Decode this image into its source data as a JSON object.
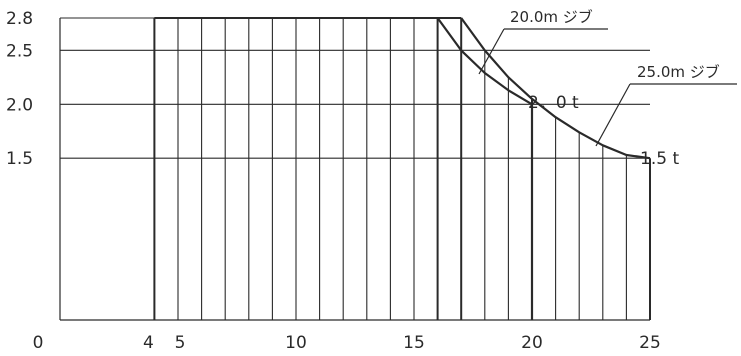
{
  "chart_data": {
    "type": "line",
    "title": "",
    "xlabel": "",
    "ylabel": "",
    "xlim": [
      0,
      25
    ],
    "ylim": [
      0,
      2.8
    ],
    "x_ticks": [
      "0",
      "4",
      "5",
      "10",
      "15",
      "20",
      "25"
    ],
    "y_ticks": [
      "2.8",
      "2.5",
      "2.0",
      "1.5"
    ],
    "grid": true,
    "series": [
      {
        "name": "20.0m ジブ",
        "end_label": "2．0 t",
        "points": [
          [
            4,
            2.8
          ],
          [
            16,
            2.8
          ],
          [
            17,
            2.5
          ],
          [
            18,
            2.29
          ],
          [
            19,
            2.13
          ],
          [
            20,
            2.0
          ]
        ]
      },
      {
        "name": "25.0m ジブ",
        "end_label": "1.5 t",
        "points": [
          [
            4,
            2.8
          ],
          [
            17,
            2.8
          ],
          [
            18,
            2.5
          ],
          [
            19,
            2.25
          ],
          [
            20,
            2.05
          ],
          [
            21,
            1.88
          ],
          [
            22,
            1.74
          ],
          [
            23,
            1.62
          ],
          [
            24,
            1.53
          ],
          [
            25,
            1.5
          ]
        ]
      }
    ]
  },
  "colors": {
    "line": "#2a2a2a",
    "background": "#ffffff"
  }
}
